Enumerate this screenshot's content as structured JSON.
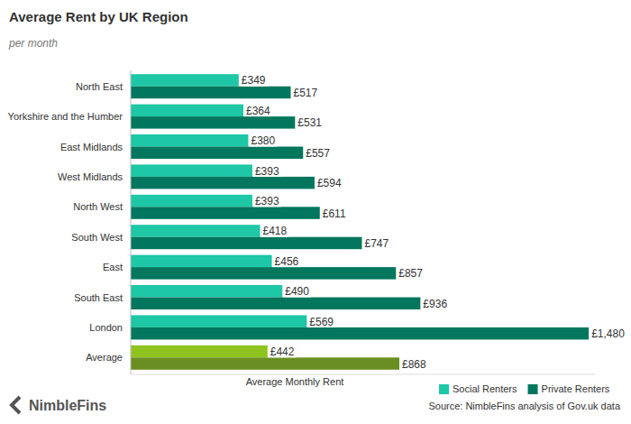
{
  "chart_data": {
    "type": "bar",
    "title": "Average Rent by UK Region",
    "subtitle": "per month",
    "x_label": "Average Monthly Rent",
    "source": "Source: NimbleFins analysis of Gov.uk data",
    "brand": "NimbleFins",
    "orientation": "horizontal",
    "data_labels": true,
    "grid": false,
    "legend": "bottom-right",
    "tick_labels": "y",
    "xlim": [
      0,
      1500
    ],
    "categories": [
      "North East",
      "Yorkshire and the Humber",
      "East Midlands",
      "West Midlands",
      "North West",
      "South West",
      "East",
      "South East",
      "London",
      "Average"
    ],
    "series": [
      {
        "name": "Social Renters",
        "color": "#1ec7a6",
        "colors": [
          "#1ec7a6",
          "#1ec7a6",
          "#1ec7a6",
          "#1ec7a6",
          "#1ec7a6",
          "#1ec7a6",
          "#1ec7a6",
          "#1ec7a6",
          "#1ec7a6",
          "#8fc31f"
        ],
        "values": [
          349,
          364,
          380,
          393,
          393,
          418,
          456,
          490,
          569,
          442
        ],
        "value_labels": [
          "£349",
          "£364",
          "£380",
          "£393",
          "£393",
          "£418",
          "£456",
          "£490",
          "£569",
          "£442"
        ]
      },
      {
        "name": "Private Renters",
        "color": "#02775d",
        "colors": [
          "#02775d",
          "#02775d",
          "#02775d",
          "#02775d",
          "#02775d",
          "#02775d",
          "#02775d",
          "#02775d",
          "#02775d",
          "#6b8e23"
        ],
        "values": [
          517,
          531,
          557,
          594,
          611,
          747,
          857,
          936,
          1480,
          868
        ],
        "value_labels": [
          "£517",
          "£531",
          "£557",
          "£594",
          "£611",
          "£747",
          "£857",
          "£936",
          "£1,480",
          "£868"
        ]
      }
    ]
  }
}
